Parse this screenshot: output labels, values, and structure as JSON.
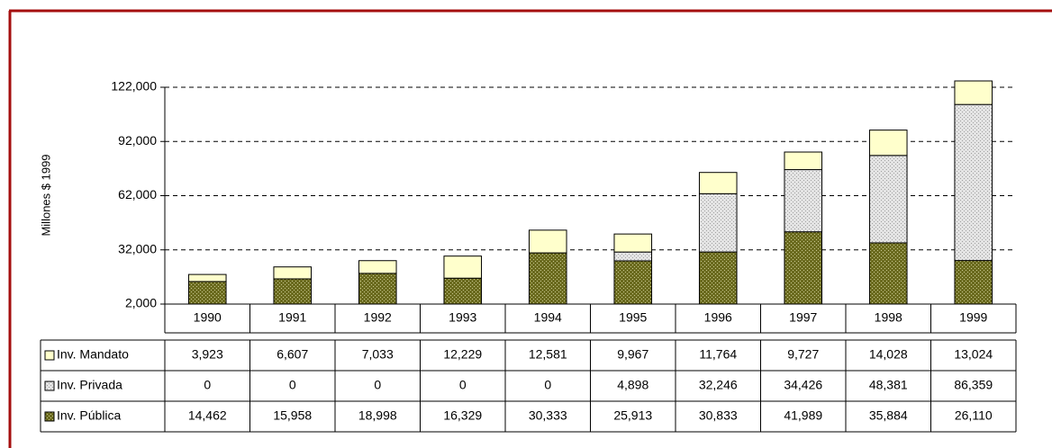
{
  "chart_data": {
    "type": "bar",
    "stacked": true,
    "y_label": "Millones $ 1999",
    "categories": [
      "1990",
      "1991",
      "1992",
      "1993",
      "1994",
      "1995",
      "1996",
      "1997",
      "1998",
      "1999"
    ],
    "series": [
      {
        "name": "Inv. Mandato",
        "color": "#ffffcc",
        "values": [
          3923,
          6607,
          7033,
          12229,
          12581,
          9967,
          11764,
          9727,
          14028,
          13024
        ],
        "value_labels": [
          "3,923",
          "6,607",
          "7,033",
          "12,229",
          "12,581",
          "9,967",
          "11,764",
          "9,727",
          "14,028",
          "13,024"
        ]
      },
      {
        "name": "Inv. Privada",
        "color": "#e4e4e4",
        "values": [
          0,
          0,
          0,
          0,
          0,
          4898,
          32246,
          34426,
          48381,
          86359
        ],
        "value_labels": [
          "0",
          "0",
          "0",
          "0",
          "0",
          "4,898",
          "32,246",
          "34,426",
          "48,381",
          "86,359"
        ]
      },
      {
        "name": "Inv. Pública",
        "color": "#6b6b1f",
        "values": [
          14462,
          15958,
          18998,
          16329,
          30333,
          25913,
          30833,
          41989,
          35884,
          26110
        ],
        "value_labels": [
          "14,462",
          "15,958",
          "18,998",
          "16,329",
          "30,333",
          "25,913",
          "30,833",
          "41,989",
          "35,884",
          "26,110"
        ]
      }
    ],
    "ylim": [
      2000,
      122000
    ],
    "yticks": [
      {
        "value": 2000,
        "label": "2,000"
      },
      {
        "value": 32000,
        "label": "32,000"
      },
      {
        "value": 62000,
        "label": "62,000"
      },
      {
        "value": 92000,
        "label": "92,000"
      },
      {
        "value": 122000,
        "label": "122,000"
      }
    ],
    "grid": true
  }
}
